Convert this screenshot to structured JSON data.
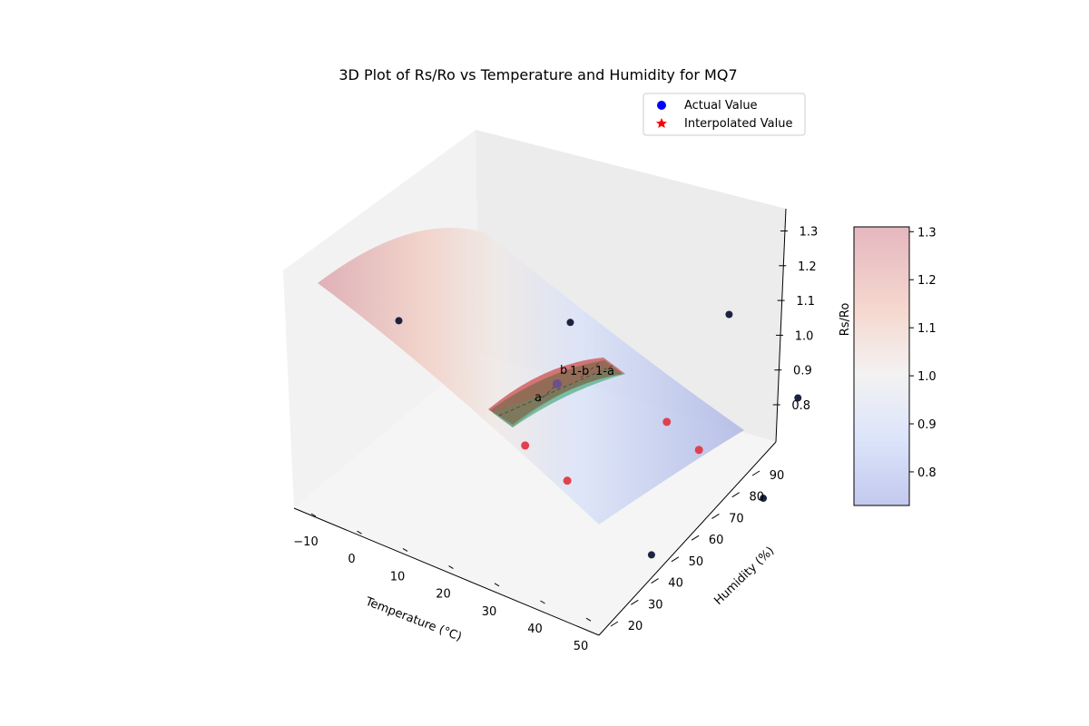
{
  "chart_data": {
    "type": "surface3d",
    "title": "3D Plot of Rs/Ro vs Temperature and Humidity for MQ7",
    "xlabel": "Temperature (°C)",
    "ylabel": "Humidity (%)",
    "zlabel": "Rs/Ro",
    "colorbar_label": "Rs/Ro",
    "x_ticks": [
      "−10",
      "0",
      "10",
      "20",
      "30",
      "40",
      "50"
    ],
    "y_ticks": [
      "20",
      "30",
      "40",
      "50",
      "60",
      "70",
      "80",
      "90"
    ],
    "z_ticks": [
      "0.8",
      "0.9",
      "1.0",
      "1.1",
      "1.2",
      "1.3"
    ],
    "colorbar_ticks": [
      "0.8",
      "0.9",
      "1.0",
      "1.1",
      "1.2",
      "1.3"
    ],
    "colorbar_range": [
      0.73,
      1.31
    ],
    "colormap": "coolwarm",
    "legend": {
      "placement": "top-right",
      "entries": [
        {
          "label": "Actual Value",
          "marker": "circle",
          "color": "#0000ff"
        },
        {
          "label": "Interpolated Value",
          "marker": "star",
          "color": "#ff0000"
        }
      ]
    },
    "actual_points": [
      {
        "t": -10,
        "h": 33,
        "rs_ro": 1.18
      },
      {
        "t": -10,
        "h": 60,
        "rs_ro": 1.11
      },
      {
        "t": -10,
        "h": 85,
        "rs_ro": 1.07
      },
      {
        "t": 20,
        "h": 33,
        "rs_ro": 0.98
      },
      {
        "t": 20,
        "h": 60,
        "rs_ro": 0.92
      },
      {
        "t": 20,
        "h": 85,
        "rs_ro": 0.87
      },
      {
        "t": 50,
        "h": 33,
        "rs_ro": 0.82
      },
      {
        "t": 50,
        "h": 60,
        "rs_ro": 0.79
      },
      {
        "t": 50,
        "h": 85,
        "rs_ro": 0.76
      }
    ],
    "interpolation_corners": [
      {
        "t": 20,
        "h": 33,
        "rs_ro": 0.98
      },
      {
        "t": 20,
        "h": 60,
        "rs_ro": 0.92
      },
      {
        "t": 30,
        "h": 33,
        "rs_ro": 0.93
      },
      {
        "t": 30,
        "h": 60,
        "rs_ro": 0.87
      }
    ],
    "annotations": [
      "a",
      "b",
      "1-b",
      "1-a"
    ]
  }
}
